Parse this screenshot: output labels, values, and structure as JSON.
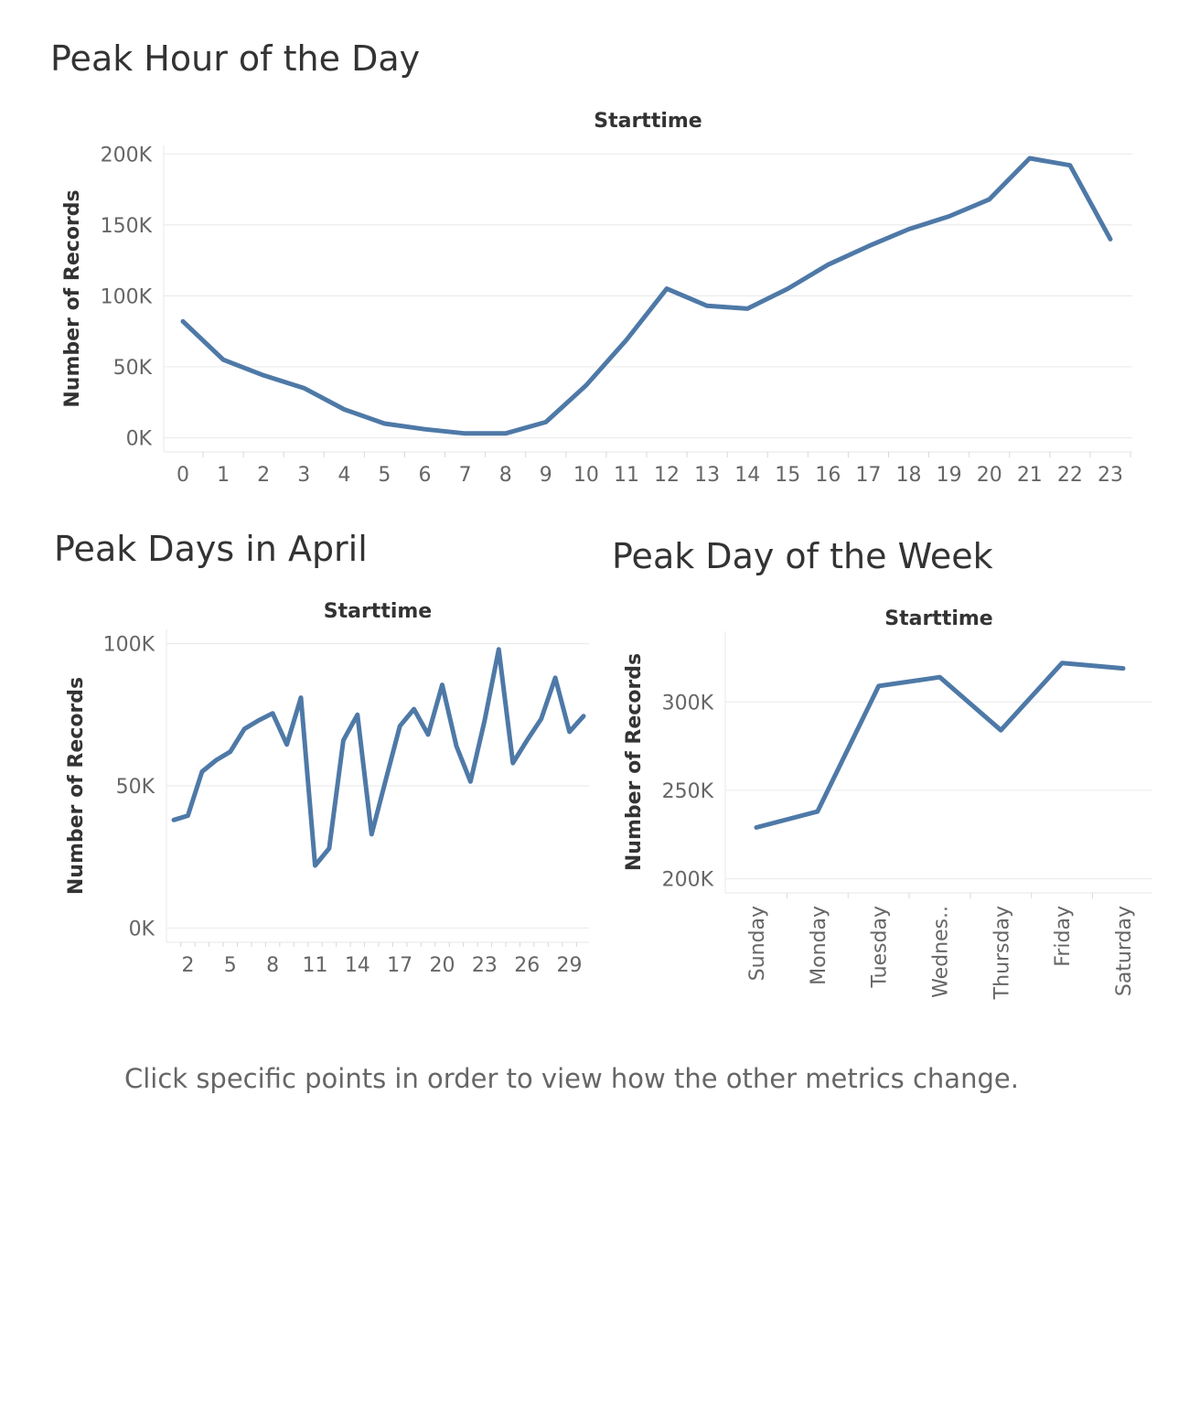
{
  "page": {
    "footer_text": "Click specific points in order to view how the other metrics change."
  },
  "colors": {
    "series": "#4e79a7"
  },
  "chart_data": [
    {
      "id": "hour",
      "type": "line",
      "title": "Peak Hour of the Day",
      "xlabel": "Starttime",
      "ylabel": "Number of Records",
      "categories": [
        "0",
        "1",
        "2",
        "3",
        "4",
        "5",
        "6",
        "7",
        "8",
        "9",
        "10",
        "11",
        "12",
        "13",
        "14",
        "15",
        "16",
        "17",
        "18",
        "19",
        "20",
        "21",
        "22",
        "23"
      ],
      "values": [
        82000,
        55000,
        44000,
        35000,
        20000,
        10000,
        6000,
        3000,
        3000,
        11000,
        37000,
        69000,
        105000,
        93000,
        91000,
        105000,
        122000,
        135000,
        147000,
        156000,
        168000,
        197000,
        192000,
        140000
      ],
      "yticks": [
        0,
        50000,
        100000,
        150000,
        200000
      ],
      "ytick_labels": [
        "0K",
        "50K",
        "100K",
        "150K",
        "200K"
      ],
      "ylim": [
        -10000,
        206000
      ],
      "xtick_labels": [
        "0",
        "1",
        "2",
        "3",
        "4",
        "5",
        "6",
        "7",
        "8",
        "9",
        "10",
        "11",
        "12",
        "13",
        "14",
        "15",
        "16",
        "17",
        "18",
        "19",
        "20",
        "21",
        "22",
        "23"
      ],
      "grid": true
    },
    {
      "id": "april",
      "type": "line",
      "title": "Peak Days in April",
      "xlabel": "Starttime",
      "ylabel": "Number of Records",
      "categories": [
        1,
        2,
        3,
        4,
        5,
        6,
        7,
        8,
        9,
        10,
        11,
        12,
        13,
        14,
        15,
        16,
        17,
        18,
        19,
        20,
        21,
        22,
        23,
        24,
        25,
        26,
        27,
        28,
        29,
        30
      ],
      "values": [
        38000,
        39500,
        55000,
        59000,
        62000,
        70000,
        73000,
        75500,
        64500,
        81000,
        22000,
        28000,
        66000,
        75000,
        33000,
        52000,
        71000,
        77000,
        68000,
        85500,
        64000,
        51500,
        73000,
        98000,
        58000,
        66000,
        73500,
        88000,
        69000,
        74500
      ],
      "yticks": [
        0,
        50000,
        100000
      ],
      "ytick_labels": [
        "0K",
        "50K",
        "100K"
      ],
      "ylim": [
        -5000,
        105000
      ],
      "xtick_values": [
        2,
        5,
        8,
        11,
        14,
        17,
        20,
        23,
        26,
        29
      ],
      "xtick_labels": [
        "2",
        "5",
        "8",
        "11",
        "14",
        "17",
        "20",
        "23",
        "26",
        "29"
      ],
      "grid": true
    },
    {
      "id": "week",
      "type": "line",
      "title": "Peak Day of the Week",
      "xlabel": "Starttime",
      "ylabel": "Number of Records",
      "categories": [
        "Sunday",
        "Monday",
        "Tuesday",
        "Wednesday",
        "Thursday",
        "Friday",
        "Saturday"
      ],
      "values": [
        229000,
        238000,
        309000,
        314000,
        284000,
        322000,
        319000
      ],
      "yticks": [
        200000,
        250000,
        300000
      ],
      "ytick_labels": [
        "200K",
        "250K",
        "300K"
      ],
      "ylim": [
        192000,
        340000
      ],
      "xtick_labels": [
        "Sunday",
        "Monday",
        "Tuesday",
        "Wednes..",
        "Thursday",
        "Friday",
        "Saturday"
      ],
      "grid": true
    }
  ]
}
